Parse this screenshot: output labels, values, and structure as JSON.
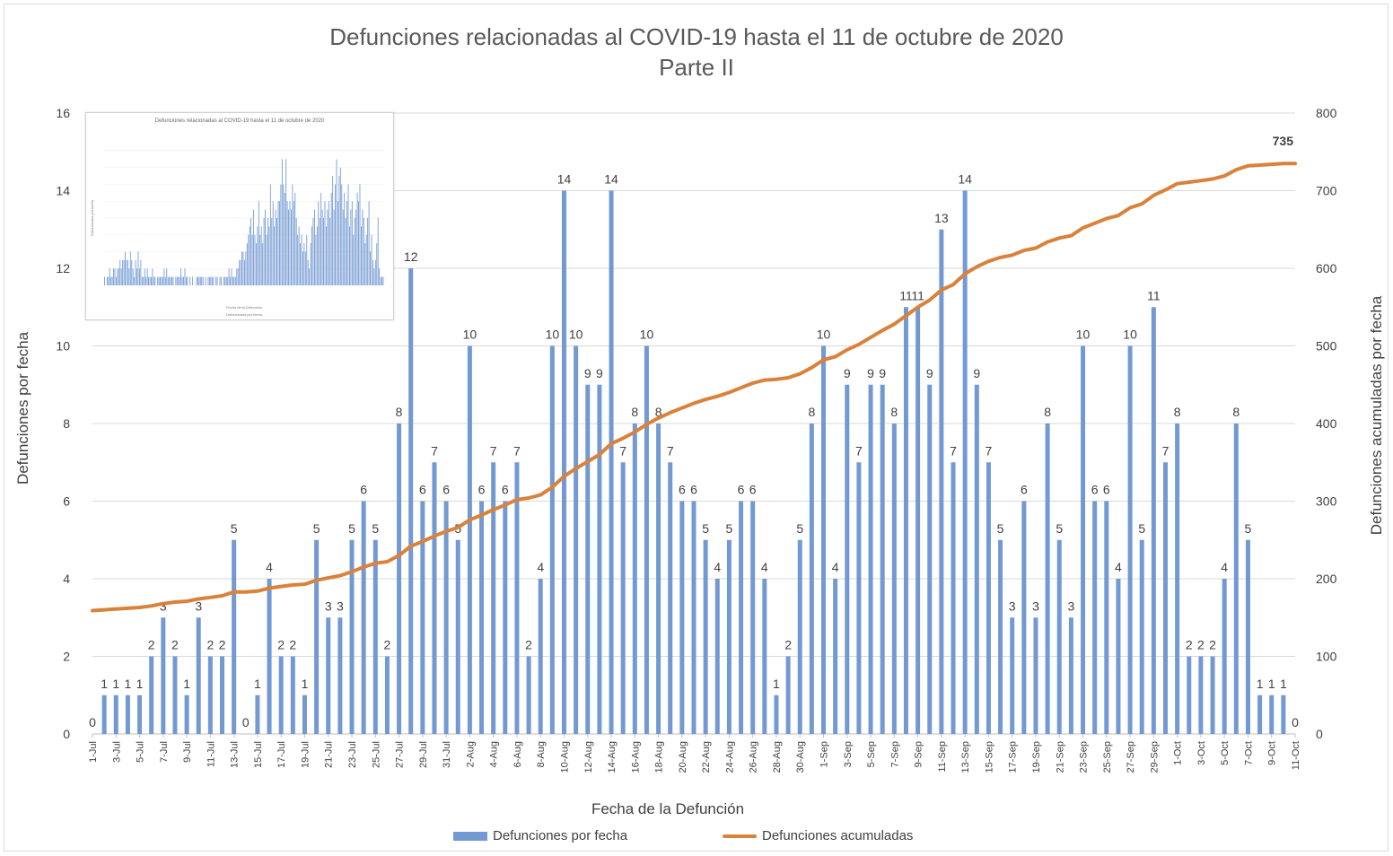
{
  "chart_data": {
    "type": "bar",
    "title": "Defunciones relacionadas al COVID-19 hasta el 11 de octubre de 2020",
    "subtitle": "Parte II",
    "xlabel": "Fecha de la Defunción",
    "ylabel": "Defunciones por fecha",
    "y2label": "Defunciones acumuladas por fecha",
    "ylim": [
      0,
      16
    ],
    "y2lim": [
      0,
      800
    ],
    "yticks": [
      "0",
      "2",
      "4",
      "6",
      "8",
      "10",
      "12",
      "14",
      "16"
    ],
    "y2ticks": [
      "0",
      "100",
      "200",
      "300",
      "400",
      "500",
      "600",
      "700",
      "800"
    ],
    "grid": true,
    "legend_position": "bottom",
    "categories": [
      "1-Jul",
      "2-Jul",
      "3-Jul",
      "4-Jul",
      "5-Jul",
      "6-Jul",
      "7-Jul",
      "8-Jul",
      "9-Jul",
      "10-Jul",
      "11-Jul",
      "12-Jul",
      "13-Jul",
      "14-Jul",
      "15-Jul",
      "16-Jul",
      "17-Jul",
      "18-Jul",
      "19-Jul",
      "20-Jul",
      "21-Jul",
      "22-Jul",
      "23-Jul",
      "24-Jul",
      "25-Jul",
      "26-Jul",
      "27-Jul",
      "28-Jul",
      "29-Jul",
      "30-Jul",
      "31-Jul",
      "1-Aug",
      "2-Aug",
      "3-Aug",
      "4-Aug",
      "5-Aug",
      "6-Aug",
      "7-Aug",
      "8-Aug",
      "9-Aug",
      "10-Aug",
      "11-Aug",
      "12-Aug",
      "13-Aug",
      "14-Aug",
      "15-Aug",
      "16-Aug",
      "17-Aug",
      "18-Aug",
      "19-Aug",
      "20-Aug",
      "21-Aug",
      "22-Aug",
      "23-Aug",
      "24-Aug",
      "25-Aug",
      "26-Aug",
      "27-Aug",
      "28-Aug",
      "29-Aug",
      "30-Aug",
      "31-Aug",
      "1-Sep",
      "2-Sep",
      "3-Sep",
      "4-Sep",
      "5-Sep",
      "6-Sep",
      "7-Sep",
      "8-Sep",
      "9-Sep",
      "10-Sep",
      "11-Sep",
      "12-Sep",
      "13-Sep",
      "14-Sep",
      "15-Sep",
      "16-Sep",
      "17-Sep",
      "18-Sep",
      "19-Sep",
      "20-Sep",
      "21-Sep",
      "22-Sep",
      "23-Sep",
      "24-Sep",
      "25-Sep",
      "26-Sep",
      "27-Sep",
      "28-Sep",
      "29-Sep",
      "30-Sep",
      "1-Oct",
      "2-Oct",
      "3-Oct",
      "4-Oct",
      "5-Oct",
      "6-Oct",
      "7-Oct",
      "8-Oct",
      "9-Oct",
      "10-Oct",
      "11-Oct"
    ],
    "series": [
      {
        "name": "Defunciones por fecha",
        "type": "bar",
        "color": "#7399d3",
        "values": [
          0,
          1,
          1,
          1,
          1,
          2,
          3,
          2,
          1,
          3,
          2,
          2,
          5,
          0,
          1,
          4,
          2,
          2,
          1,
          5,
          3,
          3,
          5,
          6,
          5,
          2,
          8,
          12,
          6,
          7,
          6,
          5,
          10,
          6,
          7,
          6,
          7,
          2,
          4,
          10,
          14,
          10,
          9,
          9,
          14,
          7,
          8,
          10,
          8,
          7,
          6,
          6,
          5,
          4,
          5,
          6,
          6,
          4,
          1,
          2,
          5,
          8,
          10,
          4,
          9,
          7,
          9,
          9,
          8,
          11,
          11,
          9,
          13,
          7,
          14,
          9,
          7,
          5,
          3,
          6,
          3,
          8,
          5,
          3,
          10,
          6,
          6,
          4,
          10,
          5,
          11,
          7,
          8,
          2,
          2,
          2,
          4,
          8,
          5,
          1,
          1,
          1,
          0
        ]
      },
      {
        "name": "Defunciones acumuladas",
        "type": "line",
        "color": "#d9823b",
        "values": [
          159,
          160,
          161,
          162,
          163,
          165,
          168,
          170,
          171,
          174,
          176,
          178,
          183,
          183,
          184,
          188,
          190,
          192,
          193,
          198,
          201,
          204,
          209,
          215,
          220,
          222,
          230,
          242,
          248,
          255,
          261,
          266,
          276,
          282,
          289,
          295,
          302,
          304,
          308,
          318,
          332,
          342,
          351,
          360,
          374,
          381,
          389,
          399,
          407,
          414,
          420,
          426,
          431,
          435,
          440,
          446,
          452,
          456,
          457,
          459,
          464,
          472,
          482,
          486,
          495,
          502,
          511,
          520,
          528,
          539,
          550,
          559,
          572,
          579,
          593,
          602,
          609,
          614,
          617,
          623,
          626,
          634,
          639,
          642,
          652,
          658,
          664,
          668,
          678,
          683,
          694,
          701,
          709,
          711,
          713,
          715,
          719,
          727,
          732,
          733,
          734,
          735,
          735
        ]
      }
    ],
    "final_cumulative_label": "735"
  },
  "inset": {
    "title": "Defunciones relacionadas al COVID-19 hasta el 11 de octubre de 2020",
    "xlabel": "Fecha de la Defunción",
    "ylabel": "Defunciones por fecha",
    "legend": "Defunciones por fecha",
    "ylim": [
      0,
      16
    ],
    "values": [
      1,
      0,
      1,
      1,
      2,
      1,
      1,
      2,
      2,
      1,
      2,
      2,
      3,
      2,
      3,
      3,
      4,
      3,
      3,
      2,
      4,
      3,
      2,
      1,
      3,
      2,
      4,
      2,
      3,
      1,
      1,
      2,
      1,
      2,
      1,
      1,
      1,
      2,
      1,
      1,
      0,
      1,
      1,
      1,
      1,
      1,
      2,
      1,
      2,
      1,
      1,
      1,
      1,
      1,
      0,
      1,
      1,
      1,
      1,
      2,
      1,
      1,
      2,
      1,
      1,
      0,
      1,
      0,
      1,
      0,
      0,
      1,
      1,
      1,
      1,
      1,
      1,
      0,
      1,
      0,
      1,
      1,
      1,
      1,
      1,
      0,
      1,
      1,
      0,
      1,
      1,
      0,
      1,
      1,
      1,
      1,
      2,
      1,
      2,
      1,
      1,
      1,
      2,
      2,
      3,
      3,
      4,
      4,
      3,
      4,
      5,
      6,
      7,
      8,
      6,
      9,
      6,
      5,
      7,
      10,
      6,
      7,
      5,
      8,
      9,
      6,
      8,
      7,
      12,
      8,
      10,
      7,
      9,
      8,
      10,
      10,
      12,
      15,
      12,
      11,
      15,
      10,
      9,
      10,
      9,
      12,
      10,
      11,
      8,
      6,
      7,
      5,
      6,
      4,
      5,
      4,
      6,
      3,
      2,
      5,
      7,
      8,
      9,
      6,
      7,
      10,
      8,
      11,
      9,
      8,
      10,
      7,
      9,
      10,
      8,
      11,
      13,
      9,
      12,
      15,
      10,
      13,
      14,
      12,
      9,
      11,
      8,
      10,
      12,
      7,
      9,
      10,
      6,
      8,
      9,
      11,
      10,
      12,
      7,
      9,
      8,
      5,
      6,
      8,
      10,
      4,
      6,
      3,
      2,
      3,
      5,
      8,
      2,
      1,
      1,
      1
    ]
  }
}
